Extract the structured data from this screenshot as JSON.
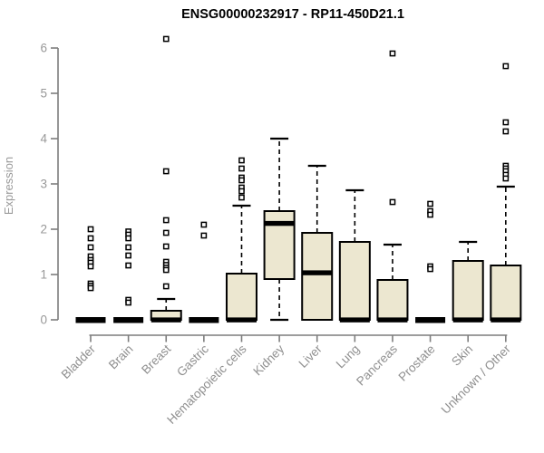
{
  "chart_data": {
    "type": "boxplot",
    "title": "ENSG00000232917 - RP11-450D21.1",
    "ylabel": "Expression",
    "xlabel": "",
    "ylim": [
      0,
      6.2
    ],
    "yticks": [
      0,
      1,
      2,
      3,
      4,
      5,
      6
    ],
    "grid": false,
    "legend": false,
    "categories": [
      "Bladder",
      "Brain",
      "Breast",
      "Gastric",
      "Hematopoietic cells",
      "Kidney",
      "Liver",
      "Lung",
      "Pancreas",
      "Prostate",
      "Skin",
      "Unknown / Other"
    ],
    "series": [
      {
        "name": "Bladder",
        "q1": 0,
        "median": 0,
        "q3": 0,
        "whisker_low": 0,
        "whisker_high": 0,
        "outliers": [
          2.0,
          1.8,
          1.6,
          1.4,
          1.32,
          1.26,
          1.18,
          0.8,
          0.75,
          0.7
        ]
      },
      {
        "name": "Brain",
        "q1": 0,
        "median": 0,
        "q3": 0,
        "whisker_low": 0,
        "whisker_high": 0,
        "outliers": [
          1.95,
          1.88,
          1.8,
          1.6,
          1.42,
          1.2,
          0.44,
          0.38
        ]
      },
      {
        "name": "Breast",
        "q1": 0,
        "median": 0,
        "q3": 0.2,
        "whisker_low": 0,
        "whisker_high": 0.46,
        "outliers": [
          6.2,
          3.28,
          2.2,
          1.92,
          1.62,
          1.28,
          1.21,
          1.15,
          1.1,
          0.74
        ]
      },
      {
        "name": "Gastric",
        "q1": 0,
        "median": 0,
        "q3": 0,
        "whisker_low": 0,
        "whisker_high": 0,
        "outliers": [
          2.1,
          1.86
        ]
      },
      {
        "name": "Hematopoietic cells",
        "q1": 0,
        "median": 0,
        "q3": 1.02,
        "whisker_low": 0,
        "whisker_high": 2.52,
        "outliers": [
          3.52,
          3.34,
          3.14,
          3.08,
          2.92,
          2.84,
          2.7
        ]
      },
      {
        "name": "Kidney",
        "q1": 0.9,
        "median": 2.13,
        "q3": 2.4,
        "whisker_low": 0,
        "whisker_high": 4.0,
        "outliers": []
      },
      {
        "name": "Liver",
        "q1": 0,
        "median": 1.04,
        "q3": 1.92,
        "whisker_low": 0,
        "whisker_high": 3.4,
        "outliers": []
      },
      {
        "name": "Lung",
        "q1": 0,
        "median": 0,
        "q3": 1.72,
        "whisker_low": 0,
        "whisker_high": 2.86,
        "outliers": []
      },
      {
        "name": "Pancreas",
        "q1": 0,
        "median": 0,
        "q3": 0.88,
        "whisker_low": 0,
        "whisker_high": 1.66,
        "outliers": [
          5.88,
          2.6
        ]
      },
      {
        "name": "Prostate",
        "q1": 0,
        "median": 0,
        "q3": 0,
        "whisker_low": 0,
        "whisker_high": 0,
        "outliers": [
          2.56,
          2.4,
          2.32,
          1.18,
          1.12
        ]
      },
      {
        "name": "Skin",
        "q1": 0,
        "median": 0,
        "q3": 1.3,
        "whisker_low": 0,
        "whisker_high": 1.72,
        "outliers": []
      },
      {
        "name": "Unknown / Other",
        "q1": 0,
        "median": 0,
        "q3": 1.2,
        "whisker_low": 0,
        "whisker_high": 2.94,
        "outliers": [
          5.6,
          4.36,
          4.16,
          3.4,
          3.34,
          3.28,
          3.2,
          3.12
        ]
      }
    ],
    "colors": {
      "box_fill": "#ece7d0",
      "box_stroke": "#000000",
      "median": "#000000",
      "whisker": "#000000",
      "outlier_stroke": "#000000",
      "outlier_fill": "#ffffff",
      "axis_line": "#7d7d7d",
      "tick_label": "#989898",
      "title": "#000000",
      "background": "#ffffff"
    }
  }
}
